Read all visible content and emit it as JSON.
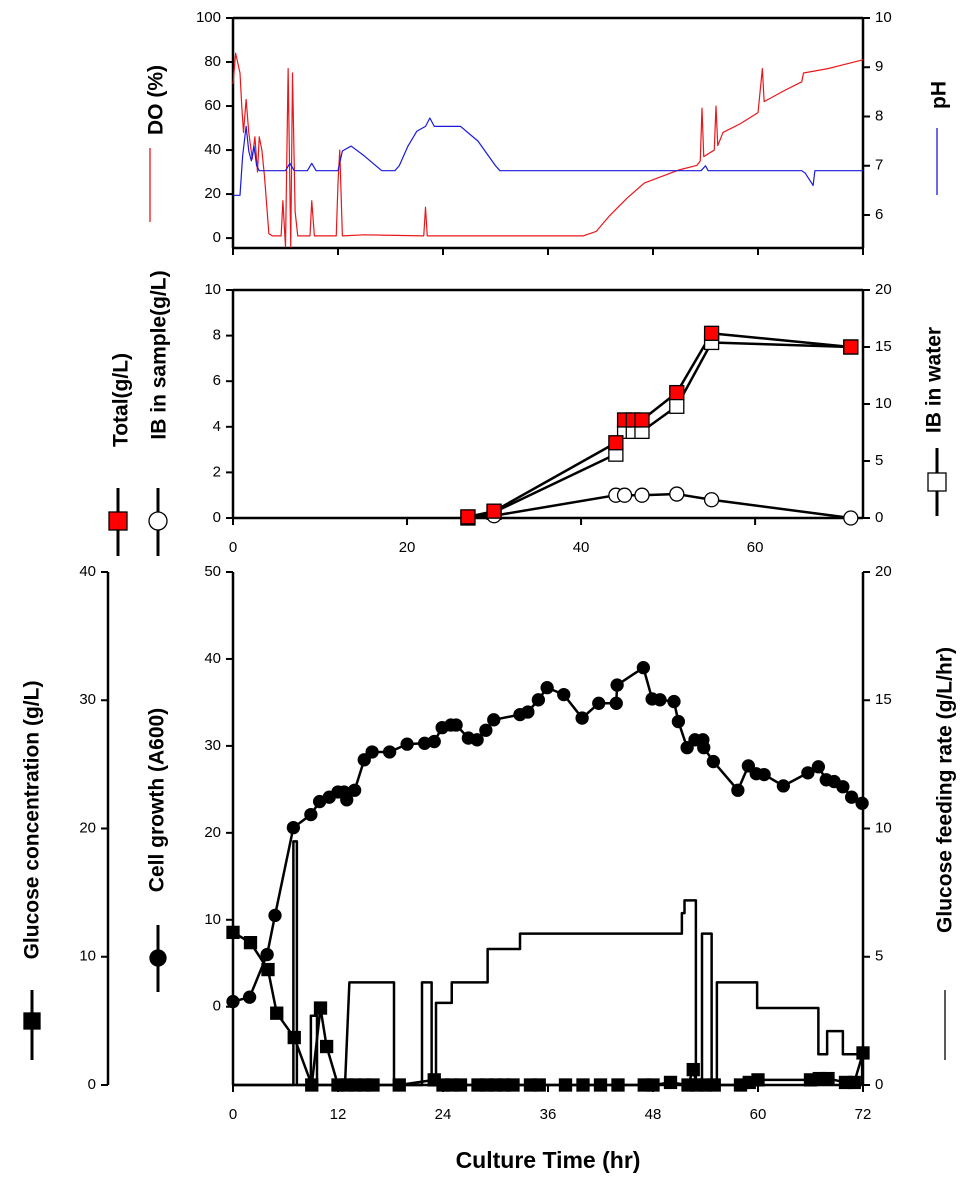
{
  "chart_data": [
    {
      "type": "line",
      "xlim": [
        0,
        72
      ],
      "xticks": [
        0,
        12,
        24,
        36,
        48,
        60,
        72
      ],
      "xtick_labels": false,
      "ylim": [
        -4.5,
        100
      ],
      "yticks": [
        0,
        20,
        40,
        60,
        80,
        100
      ],
      "y2lim": [
        5.33,
        10
      ],
      "y2ticks": [
        6,
        7,
        8,
        9,
        10
      ],
      "series": [
        {
          "name": "DO (%)",
          "color": "#e8171b",
          "x": [
            0,
            0.3,
            0.8,
            1,
            1.2,
            1.5,
            1.8,
            2.2,
            2.5,
            2.8,
            3,
            3.3,
            3.6,
            4.1,
            4.5,
            5.5,
            5.7,
            6,
            6.3,
            6.6,
            6.8,
            7.1,
            7.4,
            8.8,
            9,
            9.3,
            11.8,
            12,
            12.2,
            12.5,
            15,
            21.8,
            22,
            22.2,
            30,
            40,
            41.5,
            43,
            45,
            47,
            49,
            51,
            53,
            53.4,
            53.6,
            53.8,
            55,
            55.2,
            55.4,
            56,
            58,
            60,
            60.5,
            60.7,
            63,
            65,
            65.2,
            68,
            70,
            72
          ],
          "values": [
            70,
            84,
            75,
            60,
            48,
            63,
            48,
            36,
            46,
            30,
            46,
            40,
            28,
            2,
            1,
            1,
            17,
            -4,
            77,
            -4,
            75,
            12,
            1,
            1,
            17,
            1,
            1,
            25,
            40,
            1,
            1.5,
            1,
            14,
            1,
            1,
            1,
            3,
            10,
            18,
            25,
            28,
            31,
            33,
            35,
            59,
            37,
            40,
            60,
            42,
            48,
            52,
            57,
            77,
            62,
            67,
            71,
            75,
            77,
            79,
            81
          ]
        },
        {
          "name": "pH",
          "color": "#1a1adb",
          "axis": "y2",
          "x": [
            0,
            0.8,
            1.1,
            1.5,
            1.8,
            2.1,
            2.4,
            2.7,
            3,
            6,
            6.5,
            7,
            8.5,
            9,
            9.5,
            12,
            12.5,
            13.5,
            15,
            17,
            18.5,
            19,
            20,
            21,
            22,
            22.5,
            23,
            24,
            26,
            28,
            30,
            30.5,
            40,
            50,
            53.5,
            54,
            54.3,
            65,
            65.4,
            66.3,
            66.5,
            72
          ],
          "values": [
            6.4,
            6.4,
            7.2,
            7.8,
            7.3,
            7.1,
            7.4,
            7.0,
            6.9,
            6.9,
            7.05,
            6.9,
            6.9,
            7.05,
            6.9,
            6.9,
            7.3,
            7.4,
            7.2,
            6.9,
            6.9,
            7.0,
            7.4,
            7.7,
            7.8,
            7.97,
            7.8,
            7.8,
            7.8,
            7.5,
            7.0,
            6.9,
            6.9,
            6.9,
            6.9,
            7.0,
            6.9,
            6.9,
            6.85,
            6.6,
            6.9,
            6.9
          ]
        }
      ]
    },
    {
      "type": "line",
      "xlim": [
        0,
        72.4
      ],
      "xticks": [
        0,
        20,
        40,
        60
      ],
      "ylim": [
        0,
        10
      ],
      "yticks": [
        0,
        2,
        4,
        6,
        8,
        10
      ],
      "y2lim": [
        0,
        20
      ],
      "y2ticks": [
        0,
        5,
        10,
        15,
        20
      ],
      "series": [
        {
          "name": "IB in water",
          "color": "#ffffff",
          "line_color": "#000000",
          "marker": "square",
          "axis": "y2",
          "x": [
            27,
            30,
            44,
            45,
            46,
            47,
            51,
            55,
            71
          ],
          "values": [
            0,
            0.5,
            5.6,
            7.6,
            7.6,
            7.6,
            9.8,
            15.4,
            15
          ]
        },
        {
          "name": "IB in sample(g/L)",
          "color": "#ffffff",
          "line_color": "#000000",
          "marker": "circle",
          "x": [
            27,
            30,
            44,
            45,
            47,
            51,
            55,
            71
          ],
          "values": [
            0,
            0.1,
            1.0,
            1.0,
            1.0,
            1.05,
            0.8,
            0
          ]
        },
        {
          "name": "Total(g/L)",
          "color": "#ff0000",
          "line_color": "#000000",
          "marker": "square",
          "x": [
            27,
            30,
            44,
            45,
            46,
            47,
            51,
            55,
            71
          ],
          "values": [
            0.05,
            0.3,
            3.3,
            4.3,
            4.3,
            4.3,
            5.5,
            8.1,
            7.5
          ]
        }
      ]
    },
    {
      "type": "line",
      "x_label": "Culture Time (hr)",
      "xlim": [
        0,
        72
      ],
      "xticks": [
        0,
        12,
        24,
        36,
        48,
        60,
        72
      ],
      "ylim": [
        -9,
        50
      ],
      "yticks": [
        0,
        10,
        20,
        30,
        40,
        50
      ],
      "y2lim": [
        0,
        20
      ],
      "y2ticks": [
        0,
        5,
        10,
        15,
        20
      ],
      "y3lim": [
        0,
        40
      ],
      "y3ticks": [
        0,
        10,
        20,
        30,
        40
      ],
      "series": [
        {
          "name": "Glucose feeding rate (g/L/hr)",
          "color": "#000000",
          "axis": "y2",
          "x": [
            0,
            6.9,
            6.9,
            7.3,
            7.3,
            8.9,
            8.9,
            9.6,
            9.6,
            12.8,
            13.3,
            18.4,
            18.4,
            21.6,
            21.6,
            22.7,
            22.7,
            23.2,
            23.2,
            25,
            25,
            29.1,
            29.1,
            32.8,
            32.8,
            51.3,
            51.3,
            51.6,
            51.6,
            52.9,
            52.9,
            53.6,
            53.6,
            54.7,
            54.7,
            55.3,
            55.3,
            59.9,
            59.9,
            66.9,
            66.9,
            67.9,
            67.9,
            69.7,
            69.7,
            71.9,
            71.9
          ],
          "values": [
            0,
            0,
            9.5,
            9.5,
            0,
            0,
            2.7,
            2.7,
            0,
            0,
            4.0,
            4.0,
            0,
            0,
            4.0,
            4.0,
            0,
            0,
            3.2,
            3.2,
            4.0,
            4.0,
            5.3,
            5.3,
            5.9,
            5.9,
            6.7,
            6.7,
            7.2,
            7.2,
            0,
            0,
            5.9,
            5.9,
            0,
            0,
            4.0,
            4.0,
            3.0,
            3.0,
            1.2,
            1.2,
            2.1,
            2.1,
            1.2,
            1.2,
            0
          ]
        },
        {
          "name": "Glucose concentration (g/L)",
          "color": "#000000",
          "marker": "square",
          "axis": "y3",
          "x": [
            0,
            2,
            4,
            5,
            7,
            9,
            10,
            10.7,
            12,
            13,
            14,
            15,
            16,
            19,
            23,
            24,
            25,
            26,
            28,
            29,
            30,
            31,
            32,
            34,
            35,
            38,
            40,
            42,
            44,
            47,
            48,
            50,
            52,
            52.6,
            53,
            54,
            55,
            58,
            59,
            60,
            66,
            67,
            68,
            70,
            71,
            72
          ],
          "values": [
            11.9,
            11.1,
            9.0,
            5.6,
            3.7,
            0,
            6.0,
            3.0,
            0,
            0,
            0,
            0,
            0,
            0,
            0.4,
            0,
            0,
            0,
            0,
            0,
            0,
            0,
            0,
            0,
            0,
            0,
            0,
            0,
            0,
            0,
            0,
            0.2,
            0,
            1.2,
            0,
            0,
            0,
            0,
            0.2,
            0.4,
            0.4,
            0.5,
            0.5,
            0.2,
            0.2,
            2.5
          ]
        },
        {
          "name": "Cell growth (A600)",
          "color": "#000000",
          "marker": "circle",
          "x": [
            0,
            1.9,
            3.9,
            4.8,
            6.9,
            8.9,
            9.9,
            11,
            12,
            12.7,
            13,
            13.9,
            15,
            15.9,
            17.9,
            19.9,
            21.9,
            23,
            23.9,
            24.9,
            25.5,
            26.9,
            27.9,
            28.9,
            29.8,
            32.8,
            33.7,
            34.9,
            35.9,
            37.8,
            39.9,
            41.8,
            43.8,
            43.9,
            46.9,
            47.9,
            48.8,
            50.4,
            50.9,
            51.9,
            52.8,
            53.7,
            53.8,
            54.9,
            57.7,
            58.9,
            59.8,
            60.7,
            62.9,
            65.7,
            66.9,
            67.8,
            68.7,
            69.7,
            70.7,
            71.9
          ],
          "values": [
            0.6,
            1.1,
            6,
            10.5,
            20.6,
            22.1,
            23.6,
            24.1,
            24.7,
            24.7,
            23.8,
            24.9,
            28.4,
            29.3,
            29.3,
            30.2,
            30.3,
            30.5,
            32.1,
            32.4,
            32.4,
            30.9,
            30.7,
            31.8,
            33,
            33.6,
            33.9,
            35.3,
            36.7,
            35.9,
            33.2,
            34.9,
            34.9,
            37,
            39,
            35.4,
            35.3,
            35.1,
            32.8,
            29.8,
            30.7,
            30.7,
            29.8,
            28.2,
            24.9,
            27.7,
            26.8,
            26.7,
            25.4,
            26.9,
            27.6,
            26.1,
            25.9,
            25.3,
            24.1,
            23.4
          ]
        }
      ]
    }
  ]
}
